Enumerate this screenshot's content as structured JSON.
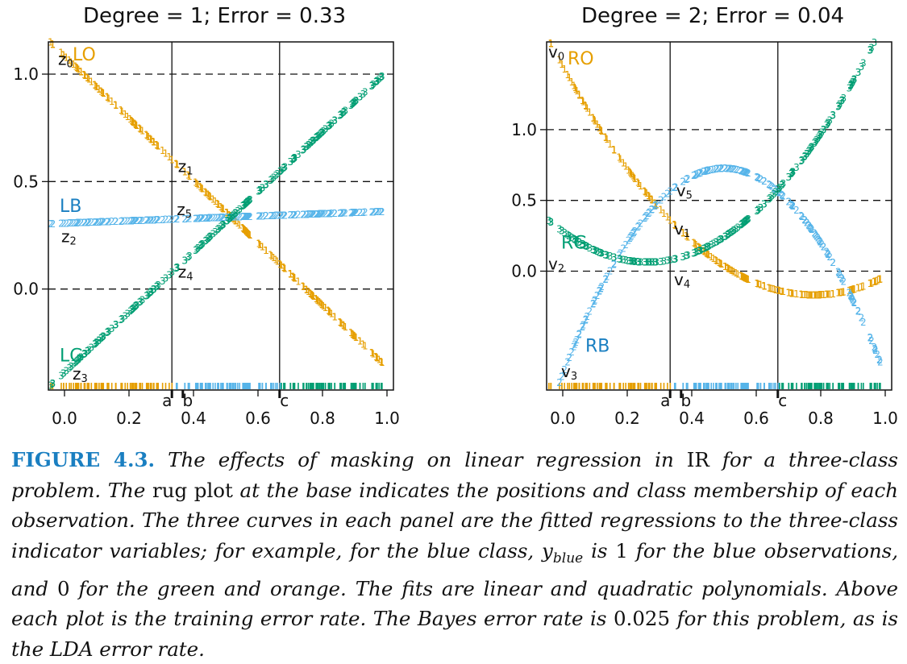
{
  "chart_data": [
    {
      "type": "scatter",
      "title": "Degree = 1; Error = 0.33",
      "xlim": [
        -0.05,
        1.02
      ],
      "ylim": [
        -0.47,
        1.15
      ],
      "xticks": [
        "0.0",
        "0.2",
        "0.4",
        "0.6",
        "0.8",
        "1.0"
      ],
      "xtick_values": [
        0,
        0.2,
        0.4,
        0.6,
        0.8,
        1.0
      ],
      "yticks": [
        "0.0",
        "0.5",
        "1.0"
      ],
      "ytick_values": [
        0,
        0.5,
        1.0
      ],
      "hlines": [
        0,
        0.5,
        1.0
      ],
      "vlines": [
        0.333,
        0.667
      ],
      "boundary_labels": [
        {
          "label": "a",
          "x": 0.333
        },
        {
          "label": "b",
          "x": 0.367
        },
        {
          "label": "c",
          "x": 0.667
        }
      ],
      "series": [
        {
          "name": "1",
          "color": "#e69f00",
          "fit": "linear",
          "params": [
            1.085,
            -1.45
          ]
        },
        {
          "name": "2",
          "color": "#56b4e9",
          "fit": "linear",
          "params": [
            0.305,
            0.055
          ]
        },
        {
          "name": "3",
          "color": "#009e73",
          "fit": "linear",
          "params": [
            -0.39,
            1.4
          ]
        }
      ],
      "annotations": [
        {
          "text": "LO",
          "x": 0.025,
          "y": 1.09,
          "color": "#e69f00"
        },
        {
          "text": "LB",
          "x": -0.015,
          "y": 0.385,
          "color": "#1a7fc1"
        },
        {
          "text": "LG",
          "x": -0.015,
          "y": -0.31,
          "color": "#009e73"
        },
        {
          "text": "z0",
          "x": -0.02,
          "y": 1.07,
          "color": "#111111"
        },
        {
          "text": "z1",
          "x": 0.352,
          "y": 0.57,
          "color": "#111111"
        },
        {
          "text": "z2",
          "x": -0.01,
          "y": 0.245,
          "color": "#111111"
        },
        {
          "text": "z3",
          "x": 0.025,
          "y": -0.395,
          "color": "#111111"
        },
        {
          "text": "z4",
          "x": 0.352,
          "y": 0.08,
          "color": "#111111"
        },
        {
          "text": "z5",
          "x": 0.348,
          "y": 0.37,
          "color": "#111111"
        }
      ]
    },
    {
      "type": "scatter",
      "title": "Degree = 2; Error = 0.04",
      "xlim": [
        -0.05,
        1.02
      ],
      "ylim": [
        -0.84,
        1.62
      ],
      "xticks": [
        "0.0",
        "0.2",
        "0.4",
        "0.6",
        "0.8",
        "1.0"
      ],
      "xtick_values": [
        0,
        0.2,
        0.4,
        0.6,
        0.8,
        1.0
      ],
      "yticks": [
        "0.0",
        "0.5",
        "1.0"
      ],
      "ytick_values": [
        0,
        0.5,
        1.0
      ],
      "hlines": [
        0,
        0.5,
        1.0
      ],
      "vlines": [
        0.333,
        0.667
      ],
      "boundary_labels": [
        {
          "label": "a",
          "x": 0.333
        },
        {
          "label": "b",
          "x": 0.367
        },
        {
          "label": "c",
          "x": 0.667
        }
      ],
      "series": [
        {
          "name": "1",
          "color": "#e69f00",
          "fit": "quadratic",
          "params": [
            1.45,
            -4.16,
            2.67
          ]
        },
        {
          "name": "2",
          "color": "#56b4e9",
          "fit": "quadratic",
          "params": [
            -0.73,
            5.82,
            -5.82
          ]
        },
        {
          "name": "3",
          "color": "#009e73",
          "fit": "quadratic",
          "params": [
            0.28,
            -1.66,
            3.15
          ]
        }
      ],
      "annotations": [
        {
          "text": "RO",
          "x": 0.015,
          "y": 1.5,
          "color": "#e69f00"
        },
        {
          "text": "RB",
          "x": 0.07,
          "y": -0.53,
          "color": "#1a7fc1"
        },
        {
          "text": "RG",
          "x": -0.005,
          "y": 0.2,
          "color": "#009e73"
        },
        {
          "text": "v0",
          "x": -0.045,
          "y": 1.55,
          "color": "#111111"
        },
        {
          "text": "v1",
          "x": 0.345,
          "y": 0.3,
          "color": "#111111"
        },
        {
          "text": "v2",
          "x": -0.045,
          "y": 0.05,
          "color": "#111111"
        },
        {
          "text": "v3",
          "x": -0.005,
          "y": -0.71,
          "color": "#111111"
        },
        {
          "text": "v4",
          "x": 0.345,
          "y": -0.06,
          "color": "#111111"
        },
        {
          "text": "v5",
          "x": 0.352,
          "y": 0.57,
          "color": "#111111"
        }
      ]
    }
  ],
  "caption": {
    "label": "FIGURE 4.3.",
    "part1": " The effects of masking on linear regression in ",
    "reals": "IR",
    "part2": " for a three-class problem. The ",
    "rug": "rug plot",
    "part3": " at the base indicates the positions and class membership of each observation. The three curves in each panel are the fitted regressions to the three-class indicator variables; for example, for the blue class, ",
    "yvar": "y",
    "ysub": "blue",
    "part4": " is ",
    "one": "1",
    "part5": " for the blue observations, and ",
    "zero": "0",
    "part6": " for the green and orange. The fits are linear and quadratic polynomials. Above each plot is the training error rate. The Bayes error rate is ",
    "bayes": "0.025",
    "part7": " for this problem, as is the LDA error rate."
  }
}
